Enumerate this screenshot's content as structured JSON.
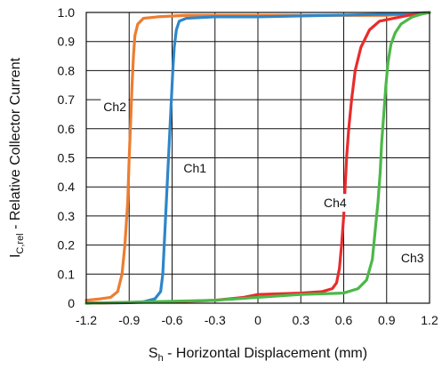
{
  "chart_data": {
    "type": "line",
    "title": "",
    "xlabel": {
      "main": "S",
      "sub": "h",
      "rest": " - Horizontal Displacement (mm)"
    },
    "ylabel": {
      "main": "I",
      "sub": "C,rel",
      "rest": " - Relative Collector Current"
    },
    "xlim": [
      -1.2,
      1.2
    ],
    "ylim": [
      0,
      1.0
    ],
    "x_ticks": [
      -1.2,
      -0.9,
      -0.6,
      -0.3,
      0,
      0.3,
      0.6,
      0.9,
      1.2
    ],
    "x_tick_labels": [
      "-1.2",
      "-0.9",
      "-0.6",
      "-0.3",
      "0",
      "0.3",
      "0.6",
      "0.9",
      "1.2"
    ],
    "y_ticks": [
      0,
      0.1,
      0.2,
      0.3,
      0.4,
      0.5,
      0.6,
      0.7,
      0.8,
      0.9,
      1.0
    ],
    "y_tick_labels": [
      "0",
      "0.1",
      "0.2",
      "0.3",
      "0.4",
      "0.5",
      "0.6",
      "0.7",
      "0.8",
      "0.9",
      "1.0"
    ],
    "grid": true,
    "series": [
      {
        "name": "Ch2",
        "color": "#ED7D31",
        "points": [
          [
            -1.2,
            0.01
          ],
          [
            -1.1,
            0.015
          ],
          [
            -1.03,
            0.02
          ],
          [
            -0.98,
            0.04
          ],
          [
            -0.95,
            0.1
          ],
          [
            -0.93,
            0.2
          ],
          [
            -0.91,
            0.35
          ],
          [
            -0.9,
            0.5
          ],
          [
            -0.89,
            0.62
          ],
          [
            -0.88,
            0.75
          ],
          [
            -0.87,
            0.85
          ],
          [
            -0.86,
            0.92
          ],
          [
            -0.84,
            0.96
          ],
          [
            -0.8,
            0.98
          ],
          [
            -0.7,
            0.985
          ],
          [
            -0.5,
            0.99
          ],
          [
            0,
            0.99
          ],
          [
            0.5,
            0.99
          ],
          [
            0.9,
            0.99
          ],
          [
            1.05,
            0.995
          ],
          [
            1.2,
            1.0
          ]
        ]
      },
      {
        "name": "Ch1",
        "color": "#2E86C9",
        "points": [
          [
            -1.2,
            0.0
          ],
          [
            -0.9,
            0.002
          ],
          [
            -0.8,
            0.005
          ],
          [
            -0.72,
            0.015
          ],
          [
            -0.68,
            0.04
          ],
          [
            -0.665,
            0.1
          ],
          [
            -0.655,
            0.2
          ],
          [
            -0.645,
            0.3
          ],
          [
            -0.635,
            0.4
          ],
          [
            -0.625,
            0.5
          ],
          [
            -0.615,
            0.6
          ],
          [
            -0.605,
            0.7
          ],
          [
            -0.595,
            0.8
          ],
          [
            -0.585,
            0.88
          ],
          [
            -0.57,
            0.94
          ],
          [
            -0.55,
            0.97
          ],
          [
            -0.5,
            0.98
          ],
          [
            -0.3,
            0.985
          ],
          [
            0,
            0.985
          ],
          [
            0.5,
            0.99
          ],
          [
            1.0,
            0.995
          ],
          [
            1.2,
            1.0
          ]
        ]
      },
      {
        "name": "Ch4",
        "color": "#E82C2C",
        "points": [
          [
            -1.2,
            0.0
          ],
          [
            -0.6,
            0.005
          ],
          [
            -0.3,
            0.01
          ],
          [
            -0.1,
            0.02
          ],
          [
            0,
            0.03
          ],
          [
            0.3,
            0.035
          ],
          [
            0.45,
            0.04
          ],
          [
            0.52,
            0.05
          ],
          [
            0.55,
            0.07
          ],
          [
            0.57,
            0.12
          ],
          [
            0.585,
            0.2
          ],
          [
            0.6,
            0.3
          ],
          [
            0.61,
            0.4
          ],
          [
            0.62,
            0.5
          ],
          [
            0.635,
            0.6
          ],
          [
            0.655,
            0.7
          ],
          [
            0.68,
            0.8
          ],
          [
            0.72,
            0.88
          ],
          [
            0.78,
            0.94
          ],
          [
            0.85,
            0.97
          ],
          [
            0.95,
            0.98
          ],
          [
            1.05,
            0.99
          ],
          [
            1.2,
            1.0
          ]
        ]
      },
      {
        "name": "Ch3",
        "color": "#4CB848",
        "points": [
          [
            -1.2,
            0.0
          ],
          [
            -0.3,
            0.01
          ],
          [
            0,
            0.02
          ],
          [
            0.3,
            0.03
          ],
          [
            0.6,
            0.035
          ],
          [
            0.7,
            0.05
          ],
          [
            0.76,
            0.08
          ],
          [
            0.8,
            0.15
          ],
          [
            0.82,
            0.25
          ],
          [
            0.84,
            0.35
          ],
          [
            0.855,
            0.45
          ],
          [
            0.865,
            0.55
          ],
          [
            0.88,
            0.65
          ],
          [
            0.895,
            0.75
          ],
          [
            0.91,
            0.83
          ],
          [
            0.93,
            0.89
          ],
          [
            0.96,
            0.93
          ],
          [
            1.0,
            0.96
          ],
          [
            1.08,
            0.985
          ],
          [
            1.15,
            0.995
          ],
          [
            1.2,
            1.0
          ]
        ]
      }
    ],
    "annotations": [
      {
        "text": "Ch2",
        "x": -1.08,
        "y": 0.66
      },
      {
        "text": "Ch1",
        "x": -0.52,
        "y": 0.45
      },
      {
        "text": "Ch4",
        "x": 0.46,
        "y": 0.33
      },
      {
        "text": "Ch3",
        "x": 1.0,
        "y": 0.14
      }
    ]
  }
}
